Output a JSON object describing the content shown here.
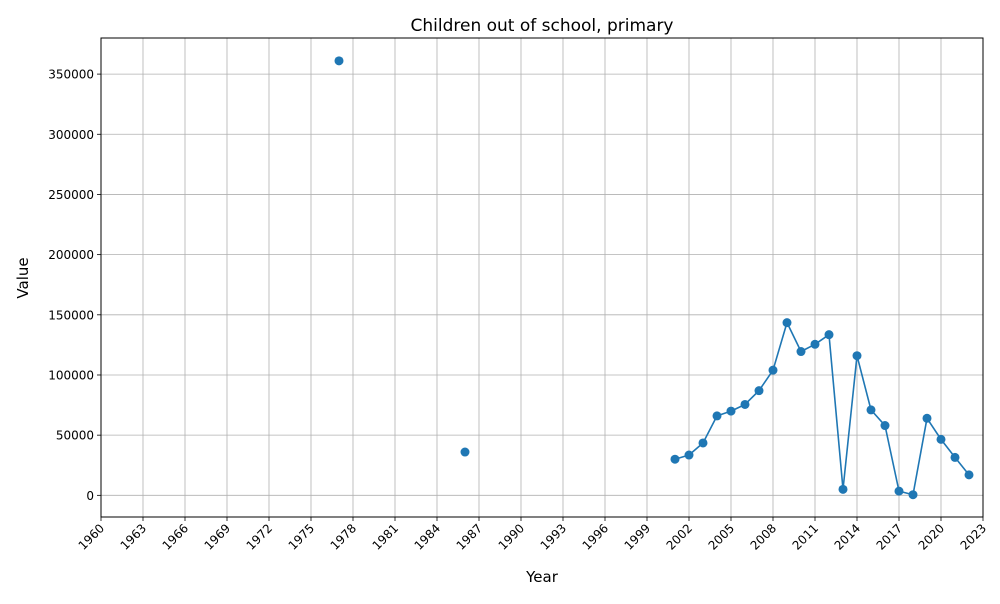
{
  "chart_data": {
    "type": "line",
    "title": "Children out of school, primary",
    "xlabel": "Year",
    "ylabel": "Value",
    "xlim": [
      1960,
      2023
    ],
    "ylim": [
      -18000,
      380000
    ],
    "xticks": [
      1960,
      1963,
      1966,
      1969,
      1972,
      1975,
      1978,
      1981,
      1984,
      1987,
      1990,
      1993,
      1996,
      1999,
      2002,
      2005,
      2008,
      2011,
      2014,
      2017,
      2020,
      2023
    ],
    "yticks": [
      0,
      50000,
      100000,
      150000,
      200000,
      250000,
      300000,
      350000
    ],
    "grid": true,
    "line_color": "#1f77b4",
    "x": [
      1977,
      1986,
      2001,
      2002,
      2003,
      2004,
      2005,
      2006,
      2007,
      2008,
      2009,
      2010,
      2011,
      2012,
      2013,
      2014,
      2015,
      2016,
      2017,
      2018,
      2019,
      2020,
      2021,
      2022
    ],
    "values": [
      361000,
      36000,
      30000,
      33500,
      43500,
      66000,
      70000,
      75500,
      87000,
      104000,
      143500,
      119500,
      125500,
      133500,
      5000,
      116000,
      71000,
      58000,
      3500,
      500,
      64000,
      46500,
      31500,
      17000
    ]
  }
}
